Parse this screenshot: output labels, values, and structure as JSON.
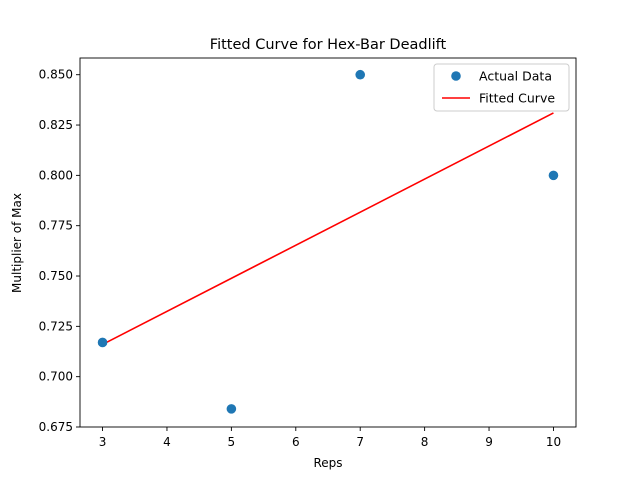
{
  "chart_data": {
    "type": "scatter",
    "title": "Fitted Curve for Hex-Bar Deadlift",
    "xlabel": "Reps",
    "ylabel": "Multiplier of Max",
    "xlim": [
      2.65,
      10.35
    ],
    "ylim": [
      0.675,
      0.8583
    ],
    "xticks": [
      3,
      4,
      5,
      6,
      7,
      8,
      9,
      10
    ],
    "xtick_labels": [
      "3",
      "4",
      "5",
      "6",
      "7",
      "8",
      "9",
      "10"
    ],
    "yticks": [
      0.675,
      0.7,
      0.725,
      0.75,
      0.775,
      0.8,
      0.825,
      0.85
    ],
    "ytick_labels": [
      "0.675",
      "0.700",
      "0.725",
      "0.750",
      "0.775",
      "0.800",
      "0.825",
      "0.850"
    ],
    "grid": false,
    "legend_position": "top-right",
    "series": [
      {
        "name": "Actual Data",
        "kind": "scatter",
        "color": "#1f77b4",
        "x": [
          3,
          5,
          7,
          10
        ],
        "y": [
          0.717,
          0.684,
          0.85,
          0.8
        ]
      },
      {
        "name": "Fitted Curve",
        "kind": "line",
        "color": "#ff0000",
        "x": [
          3,
          10
        ],
        "y": [
          0.716,
          0.831
        ]
      }
    ]
  }
}
